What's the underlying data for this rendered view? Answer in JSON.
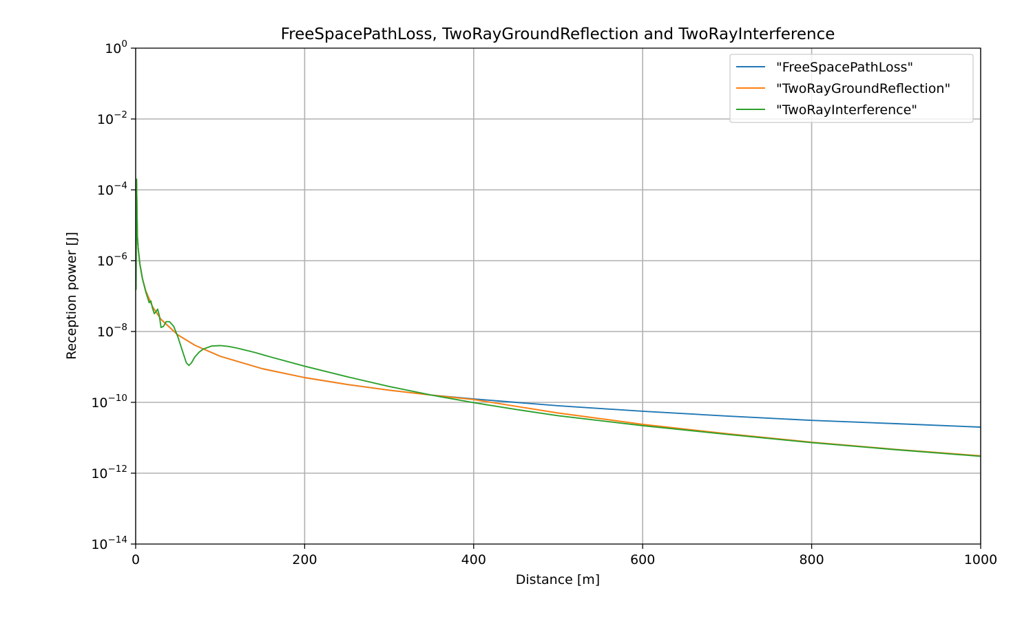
{
  "chart_data": {
    "type": "line",
    "title": "FreeSpacePathLoss, TwoRayGroundReflection and TwoRayInterference",
    "xlabel": "Distance [m]",
    "ylabel": "Reception power [J]",
    "xlim": [
      0,
      1000
    ],
    "ylim": [
      1e-14,
      1
    ],
    "yscale": "log",
    "grid": true,
    "legend_position": "top-right",
    "x_ticks": [
      0,
      200,
      400,
      600,
      800,
      1000
    ],
    "y_ticks": [
      {
        "base": "10",
        "exp": "0",
        "value": 1
      },
      {
        "base": "10",
        "exp": "−2",
        "value": 0.01
      },
      {
        "base": "10",
        "exp": "−4",
        "value": 0.0001
      },
      {
        "base": "10",
        "exp": "−6",
        "value": 1e-06
      },
      {
        "base": "10",
        "exp": "−8",
        "value": 1e-08
      },
      {
        "base": "10",
        "exp": "−10",
        "value": 1e-10
      },
      {
        "base": "10",
        "exp": "−12",
        "value": 1e-12
      },
      {
        "base": "10",
        "exp": "−14",
        "value": 1e-14
      }
    ],
    "series": [
      {
        "name": "\"FreeSpacePathLoss\"",
        "color": "#1f77b4",
        "x": [
          1,
          2,
          3,
          5,
          8,
          12,
          20,
          30,
          50,
          70,
          100,
          150,
          200,
          250,
          300,
          350,
          400,
          500,
          600,
          700,
          800,
          900,
          1000
        ],
        "y": [
          0.0002,
          5e-06,
          2.2e-06,
          8e-07,
          3.1e-07,
          1.4e-07,
          5e-08,
          2.2e-08,
          8e-09,
          4.1e-09,
          2e-09,
          8.9e-10,
          5e-10,
          3.2e-10,
          2.2e-10,
          1.6e-10,
          1.25e-10,
          8e-11,
          5.6e-11,
          4.1e-11,
          3.1e-11,
          2.5e-11,
          2e-11
        ]
      },
      {
        "name": "\"TwoRayGroundReflection\"",
        "color": "#ff7f0e",
        "x": [
          1,
          2,
          3,
          5,
          8,
          12,
          20,
          30,
          50,
          70,
          100,
          150,
          200,
          250,
          300,
          350,
          400,
          500,
          600,
          700,
          800,
          900,
          1000
        ],
        "y": [
          0.0002,
          5e-06,
          2.2e-06,
          8e-07,
          3.1e-07,
          1.4e-07,
          5e-08,
          2.2e-08,
          8e-09,
          4.1e-09,
          2e-09,
          8.9e-10,
          5e-10,
          3.2e-10,
          2.2e-10,
          1.6e-10,
          1.2e-10,
          5e-11,
          2.4e-11,
          1.3e-11,
          7.5e-12,
          4.7e-12,
          3.1e-12
        ]
      },
      {
        "name": "\"TwoRayInterference\"",
        "color": "#2ca02c",
        "x": [
          0.5,
          1,
          2,
          3,
          5,
          8,
          12,
          16,
          18,
          20,
          22,
          24,
          26,
          28,
          30,
          33,
          36,
          40,
          45,
          50,
          55,
          60,
          63,
          66,
          70,
          75,
          80,
          90,
          100,
          110,
          120,
          140,
          160,
          200,
          250,
          300,
          350,
          400,
          450,
          500,
          600,
          700,
          800,
          900,
          1000
        ],
        "y": [
          1.5e-07,
          0.0002,
          5e-06,
          2.2e-06,
          8e-07,
          3.1e-07,
          1.3e-07,
          6.5e-08,
          7.3e-08,
          4.5e-08,
          3.2e-08,
          3.6e-08,
          4.3e-08,
          2.8e-08,
          1.3e-08,
          1.4e-08,
          1.9e-08,
          1.9e-08,
          1.4e-08,
          7e-09,
          3e-09,
          1.3e-09,
          1.1e-09,
          1.3e-09,
          1.9e-09,
          2.6e-09,
          3.2e-09,
          3.9e-09,
          4e-09,
          3.8e-09,
          3.4e-09,
          2.6e-09,
          1.9e-09,
          1.05e-09,
          5.3e-10,
          2.8e-10,
          1.6e-10,
          9.8e-11,
          6.3e-11,
          4.2e-11,
          2.2e-11,
          1.25e-11,
          7.3e-12,
          4.6e-12,
          3e-12
        ]
      }
    ]
  }
}
